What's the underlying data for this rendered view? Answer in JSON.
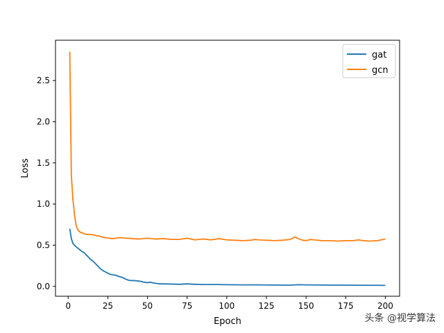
{
  "chart_data": {
    "type": "line",
    "title": "",
    "xlabel": "Epoch",
    "ylabel": "Loss",
    "xlim": [
      -8,
      209
    ],
    "ylim": [
      -0.12,
      2.99
    ],
    "xticks": [
      0,
      25,
      50,
      75,
      100,
      125,
      150,
      175,
      200
    ],
    "yticks": [
      0.0,
      0.5,
      1.0,
      1.5,
      2.0,
      2.5
    ],
    "ytick_labels": [
      "0.0",
      "0.5",
      "1.0",
      "1.5",
      "2.0",
      "2.5"
    ],
    "grid": false,
    "legend_position": "top-right",
    "series": [
      {
        "name": "gat",
        "color": "#1f77b4",
        "x": [
          1,
          2,
          3,
          4,
          5,
          6,
          7,
          8,
          9,
          10,
          12,
          14,
          16,
          18,
          20,
          22,
          24,
          26,
          28,
          30,
          32,
          34,
          36,
          38,
          40,
          42,
          44,
          46,
          48,
          50,
          52,
          54,
          56,
          58,
          60,
          65,
          70,
          75,
          80,
          85,
          90,
          95,
          100,
          110,
          120,
          130,
          140,
          145,
          150,
          155,
          160,
          170,
          180,
          190,
          195,
          200
        ],
        "y": [
          0.7,
          0.58,
          0.52,
          0.5,
          0.48,
          0.465,
          0.45,
          0.435,
          0.42,
          0.41,
          0.37,
          0.33,
          0.3,
          0.26,
          0.22,
          0.19,
          0.17,
          0.15,
          0.14,
          0.135,
          0.12,
          0.11,
          0.09,
          0.075,
          0.07,
          0.07,
          0.065,
          0.06,
          0.05,
          0.045,
          0.05,
          0.04,
          0.035,
          0.03,
          0.03,
          0.028,
          0.025,
          0.03,
          0.025,
          0.022,
          0.022,
          0.022,
          0.02,
          0.018,
          0.018,
          0.016,
          0.015,
          0.02,
          0.018,
          0.017,
          0.016,
          0.015,
          0.014,
          0.013,
          0.013,
          0.012
        ]
      },
      {
        "name": "gcn",
        "color": "#ff7f0e",
        "x": [
          1,
          2,
          3,
          4,
          5,
          6,
          7,
          8,
          9,
          10,
          12,
          14,
          16,
          18,
          20,
          22,
          24,
          26,
          28,
          30,
          32,
          34,
          36,
          38,
          40,
          45,
          50,
          55,
          60,
          65,
          70,
          75,
          80,
          85,
          90,
          95,
          100,
          105,
          110,
          115,
          118,
          120,
          125,
          130,
          135,
          140,
          143,
          145,
          148,
          150,
          153,
          155,
          160,
          165,
          170,
          175,
          180,
          183,
          186,
          190,
          195,
          200
        ],
        "y": [
          2.85,
          1.35,
          1.05,
          0.87,
          0.74,
          0.69,
          0.665,
          0.655,
          0.65,
          0.64,
          0.63,
          0.63,
          0.625,
          0.615,
          0.61,
          0.595,
          0.59,
          0.585,
          0.58,
          0.585,
          0.59,
          0.59,
          0.585,
          0.585,
          0.58,
          0.575,
          0.585,
          0.575,
          0.58,
          0.57,
          0.57,
          0.585,
          0.565,
          0.575,
          0.565,
          0.58,
          0.565,
          0.56,
          0.555,
          0.56,
          0.57,
          0.565,
          0.56,
          0.555,
          0.56,
          0.57,
          0.6,
          0.58,
          0.56,
          0.555,
          0.57,
          0.565,
          0.555,
          0.555,
          0.55,
          0.555,
          0.555,
          0.565,
          0.555,
          0.55,
          0.555,
          0.575
        ]
      }
    ]
  },
  "watermark": "头条 @视学算法"
}
